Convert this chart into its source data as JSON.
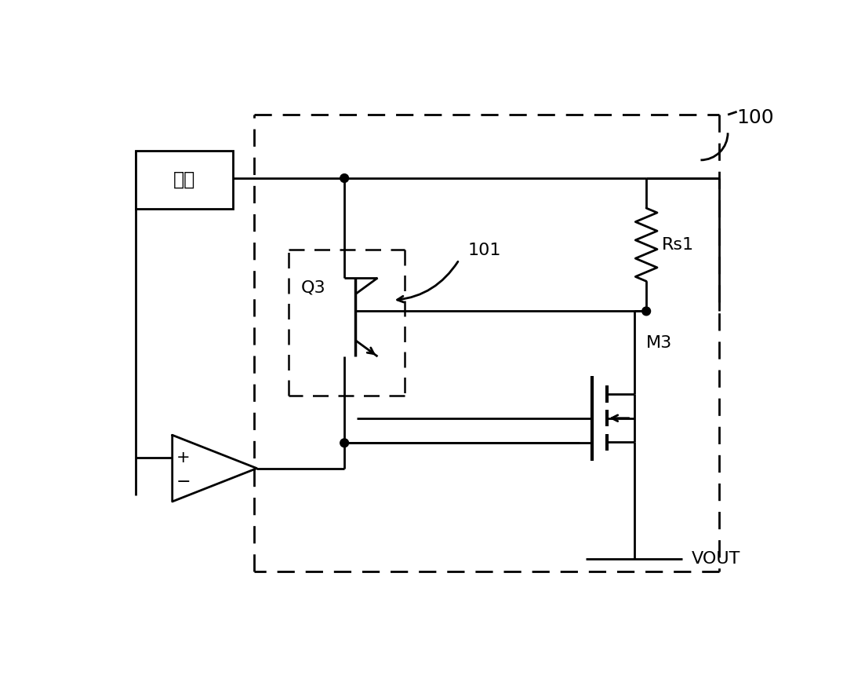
{
  "bg_color": "#ffffff",
  "line_color": "#000000",
  "fig_width": 10.89,
  "fig_height": 8.65,
  "dpi": 100,
  "label_100": "100",
  "label_101": "101",
  "label_Q3": "Q3",
  "label_M3": "M3",
  "label_Rs1": "Rs1",
  "label_VOUT": "VOUT",
  "label_power": "电源",
  "lw": 2.0
}
